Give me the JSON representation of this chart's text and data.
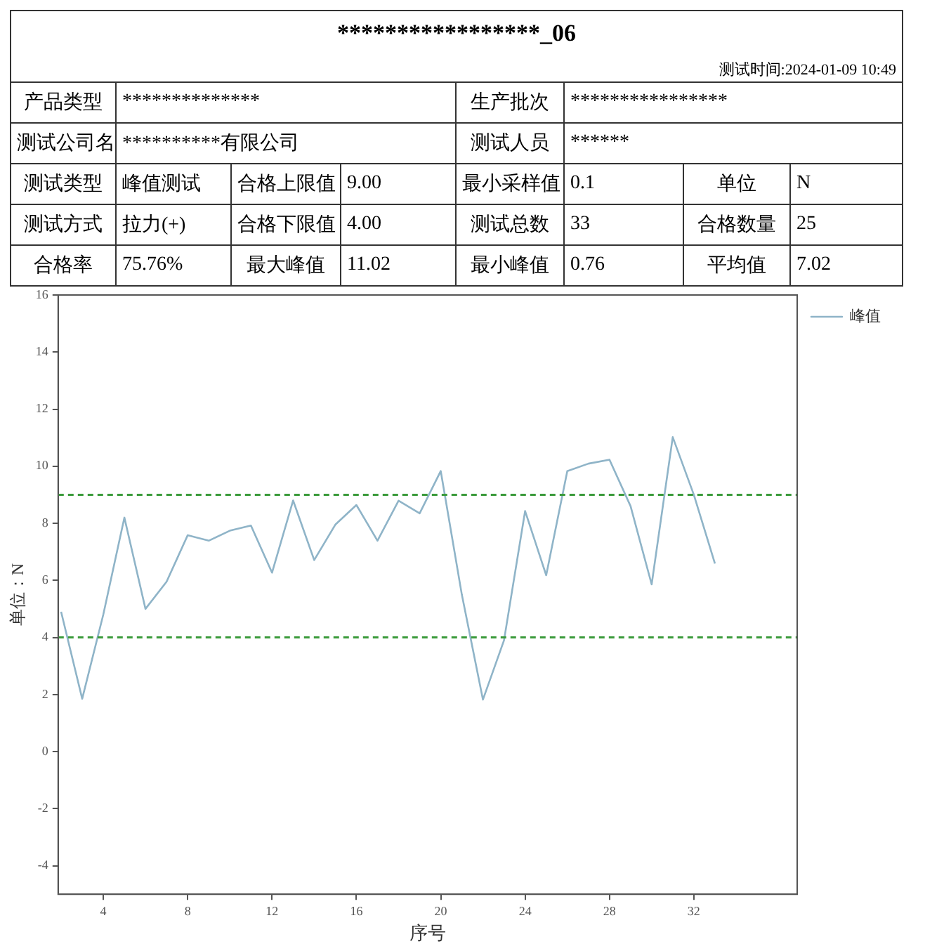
{
  "chart_data": {
    "type": "line",
    "title": "*****************_06",
    "annotations": [
      "测试时间:2024-01-09 10:49",
      "产品类型",
      "**************",
      "生产批次",
      "****************",
      "测试公司名",
      "**********有限公司",
      "测试人员",
      "******",
      "测试类型",
      "峰值测试",
      "合格上限值",
      "9.00",
      "最小采样值",
      "0.1",
      "单位",
      "N",
      "测试方式",
      "拉力(+)",
      "合格下限值",
      "4.00",
      "测试总数",
      "33",
      "合格数量",
      "25",
      "合格率",
      "75.76%",
      "最大峰值",
      "11.02",
      "最小峰值",
      "0.76",
      "平均值",
      "7.02"
    ],
    "xlabel": "序号",
    "ylabel": "单位：N",
    "x": [
      2,
      3,
      4,
      5,
      6,
      7,
      8,
      9,
      10,
      11,
      12,
      13,
      14,
      15,
      16,
      17,
      18,
      19,
      20,
      21,
      22,
      23,
      24,
      25,
      26,
      27,
      28,
      29,
      30,
      31,
      32,
      33
    ],
    "series": [
      {
        "name": "峰值",
        "color": "#8fb4c8",
        "values": [
          4.9,
          1.85,
          4.8,
          8.2,
          5.0,
          5.95,
          7.58,
          7.39,
          7.74,
          7.92,
          6.27,
          8.8,
          6.71,
          7.95,
          8.64,
          7.39,
          8.79,
          8.35,
          9.83,
          5.5,
          1.82,
          3.9,
          8.43,
          6.18,
          9.83,
          10.09,
          10.23,
          8.6,
          5.86,
          11.02,
          9.0,
          6.59
        ]
      }
    ],
    "xlim": [
      1.86,
      36.9
    ],
    "xticks": [
      4,
      8,
      12,
      16,
      20,
      24,
      28,
      32
    ],
    "ylim": [
      -5,
      16
    ],
    "yticks": [
      -4,
      -2,
      0,
      2,
      4,
      6,
      8,
      10,
      12,
      14,
      16
    ],
    "ref_lines": [
      {
        "axis": "y",
        "value": 9,
        "color": "#3a9a3a",
        "line_style": "dashed"
      },
      {
        "axis": "y",
        "value": 4,
        "color": "#3a9a3a",
        "line_style": "dashed"
      }
    ],
    "grid": false,
    "legend": "top right",
    "marker": "none",
    "line_style": "solid"
  }
}
